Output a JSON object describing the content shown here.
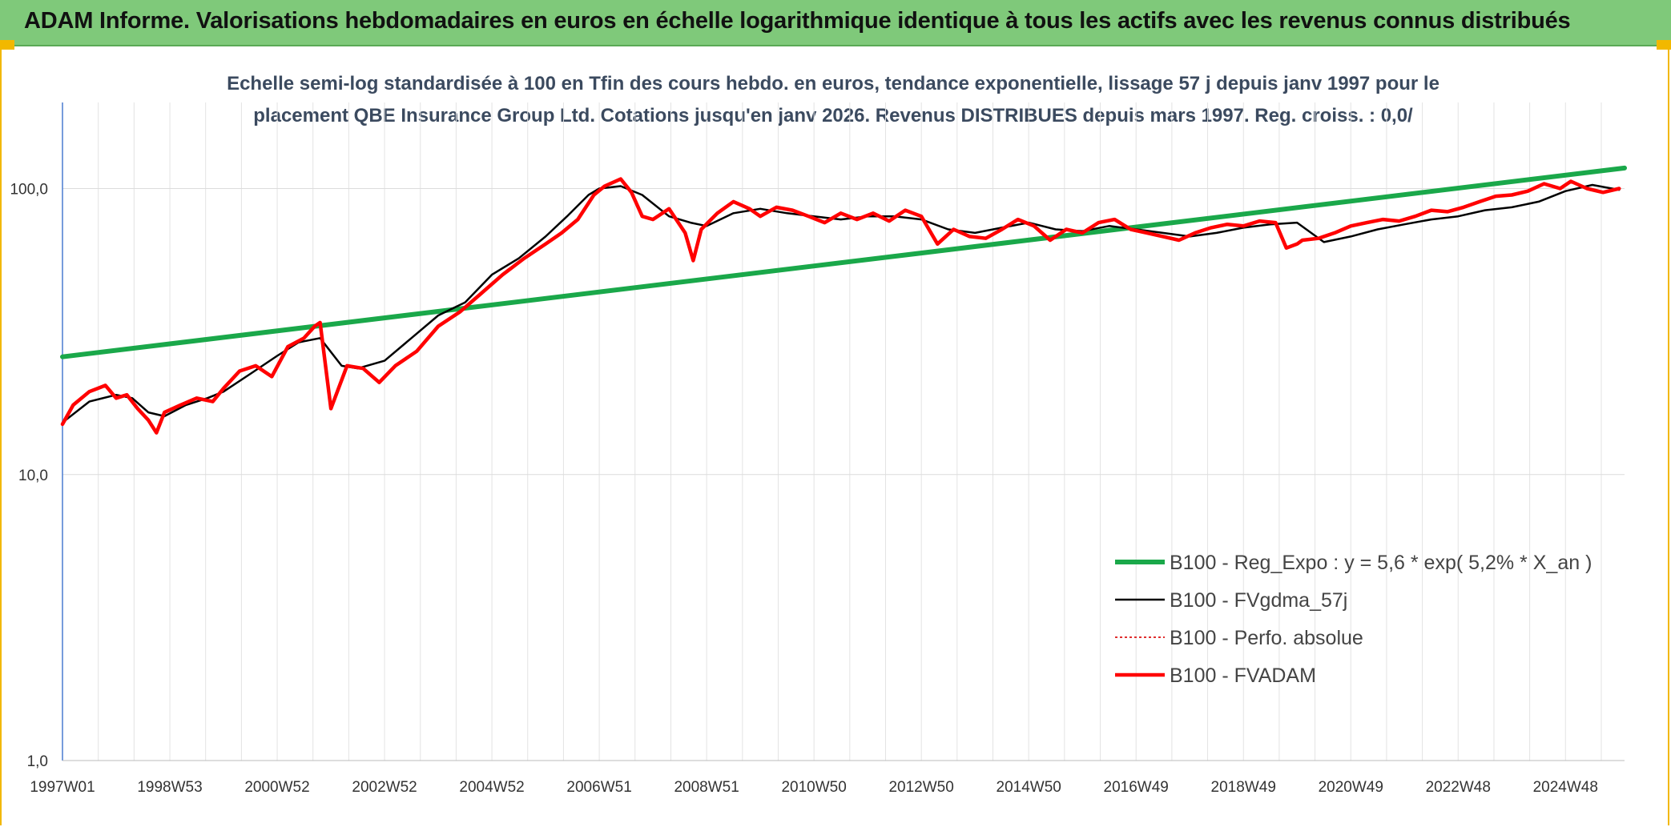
{
  "banner": {
    "title": "ADAM Informe. Valorisations hebdomadaires en euros en échelle logarithmique identique à tous les actifs avec les revenus connus distribués"
  },
  "colors": {
    "banner": "#7fc97a",
    "regression": "#1aa84a",
    "fvgdma": "#000000",
    "perfo": "#e03030",
    "fvadam": "#ff0000",
    "frame_accent": "#f2b800"
  },
  "chart_data": {
    "type": "line",
    "title_lines": [
      "Echelle semi-log standardisée à 100 en Tfin des cours hebdo. en euros, tendance exponentielle, lissage 57 j depuis janv 1997 pour le",
      "placement QBE Insurance Group Ltd. Cotations jusqu'en janv 2026. Revenus DISTRIBUES depuis mars 1997. Reg. croiss. : 0,0/"
    ],
    "y_scale": "log",
    "ylim": [
      1,
      200
    ],
    "y_ticks": [
      {
        "value": 1,
        "label": "1,0"
      },
      {
        "value": 10,
        "label": "10,0"
      },
      {
        "value": 100,
        "label": "100,0"
      }
    ],
    "x_range": [
      1997.0,
      2026.1
    ],
    "x_ticks": [
      {
        "x": 1997.0,
        "label": "1997W01"
      },
      {
        "x": 1999.0,
        "label": "1998W53"
      },
      {
        "x": 2001.0,
        "label": "2000W52"
      },
      {
        "x": 2003.0,
        "label": "2002W52"
      },
      {
        "x": 2005.0,
        "label": "2004W52"
      },
      {
        "x": 2007.0,
        "label": "2006W51"
      },
      {
        "x": 2009.0,
        "label": "2008W51"
      },
      {
        "x": 2011.0,
        "label": "2010W50"
      },
      {
        "x": 2013.0,
        "label": "2012W50"
      },
      {
        "x": 2015.0,
        "label": "2014W50"
      },
      {
        "x": 2017.0,
        "label": "2016W49"
      },
      {
        "x": 2019.0,
        "label": "2018W49"
      },
      {
        "x": 2021.0,
        "label": "2020W49"
      },
      {
        "x": 2023.0,
        "label": "2022W48"
      },
      {
        "x": 2025.0,
        "label": "2024W48"
      }
    ],
    "grid": "vertical-and-horizontal",
    "legend_position": "bottom-right",
    "series": [
      {
        "name": "B100 - Reg_Expo : y = 5,6 * exp( 5,2% *  X_an )",
        "style": "solid-thick",
        "x": [
          1997.0,
          2026.1
        ],
        "y": [
          25.8,
          118
        ]
      },
      {
        "name": "B100 - FVgdma_57j",
        "style": "solid-thin",
        "x": [
          1997.0,
          1997.5,
          1998.0,
          1998.3,
          1998.6,
          1998.9,
          1999.3,
          1999.7,
          2000.0,
          2000.5,
          2001.0,
          2001.4,
          2001.8,
          2002.2,
          2002.5,
          2003.0,
          2003.5,
          2004.0,
          2004.5,
          2005.0,
          2005.5,
          2006.0,
          2006.4,
          2006.8,
          2007.0,
          2007.4,
          2007.8,
          2008.3,
          2008.7,
          2009.0,
          2009.5,
          2010.0,
          2010.5,
          2011.0,
          2011.5,
          2012.0,
          2012.5,
          2013.0,
          2013.5,
          2014.0,
          2014.5,
          2015.0,
          2015.5,
          2016.0,
          2016.5,
          2017.0,
          2017.5,
          2018.0,
          2018.5,
          2019.0,
          2019.5,
          2020.0,
          2020.5,
          2021.0,
          2021.5,
          2022.0,
          2022.5,
          2023.0,
          2023.5,
          2024.0,
          2024.5,
          2025.0,
          2025.5,
          2026.0
        ],
        "y": [
          15.2,
          18,
          19,
          18.5,
          16.5,
          16,
          17.5,
          18.5,
          19.5,
          22.5,
          26,
          29,
          30,
          24,
          23.5,
          25,
          30,
          36,
          40,
          50,
          57,
          68,
          80,
          95,
          100,
          102,
          95,
          80,
          76,
          74,
          82,
          85,
          82,
          80,
          78,
          80,
          80,
          78,
          72,
          70,
          73,
          76,
          72,
          71,
          74,
          72,
          70,
          68,
          70,
          73,
          75,
          76,
          65,
          68,
          72,
          75,
          78,
          80,
          84,
          86,
          90,
          98,
          103,
          99
        ]
      },
      {
        "name": "B100 - Perfo. absolue",
        "style": "dotted",
        "x": [],
        "y": []
      },
      {
        "name": "B100 - FVADAM",
        "style": "solid-thick",
        "x": [
          1997.0,
          1997.2,
          1997.5,
          1997.8,
          1998.0,
          1998.2,
          1998.4,
          1998.6,
          1998.75,
          1998.9,
          1999.2,
          1999.5,
          1999.8,
          2000.0,
          2000.3,
          2000.6,
          2000.9,
          2001.2,
          2001.5,
          2001.7,
          2001.8,
          2002.0,
          2002.3,
          2002.6,
          2002.9,
          2003.2,
          2003.6,
          2004.0,
          2004.4,
          2004.8,
          2005.2,
          2005.6,
          2006.0,
          2006.3,
          2006.6,
          2006.9,
          2007.1,
          2007.4,
          2007.6,
          2007.8,
          2008.0,
          2008.3,
          2008.6,
          2008.75,
          2008.9,
          2009.2,
          2009.5,
          2009.8,
          2010.0,
          2010.3,
          2010.6,
          2010.9,
          2011.2,
          2011.5,
          2011.8,
          2012.1,
          2012.4,
          2012.7,
          2013.0,
          2013.3,
          2013.6,
          2013.9,
          2014.2,
          2014.5,
          2014.8,
          2015.1,
          2015.4,
          2015.7,
          2016.0,
          2016.3,
          2016.6,
          2016.9,
          2017.2,
          2017.5,
          2017.8,
          2018.1,
          2018.4,
          2018.7,
          2019.0,
          2019.3,
          2019.6,
          2019.8,
          2020.0,
          2020.1,
          2020.4,
          2020.7,
          2021.0,
          2021.3,
          2021.6,
          2021.9,
          2022.2,
          2022.5,
          2022.8,
          2023.1,
          2023.4,
          2023.7,
          2024.0,
          2024.3,
          2024.6,
          2024.9,
          2025.1,
          2025.4,
          2025.7,
          2026.0
        ],
        "y": [
          15,
          17.5,
          19.5,
          20.5,
          18.5,
          19,
          17,
          15.5,
          14,
          16.5,
          17.5,
          18.5,
          18,
          20,
          23,
          24,
          22,
          28,
          30,
          33,
          34,
          17,
          24,
          23.5,
          21,
          24,
          27,
          33,
          37,
          43,
          50,
          57,
          64,
          70,
          78,
          95,
          102,
          108,
          97,
          80,
          78,
          85,
          70,
          56,
          72,
          82,
          90,
          85,
          80,
          86,
          84,
          80,
          76,
          82,
          78,
          82,
          77,
          84,
          80,
          64,
          72,
          68,
          67,
          72,
          78,
          74,
          66,
          72,
          70,
          76,
          78,
          72,
          70,
          68,
          66,
          70,
          73,
          75,
          74,
          77,
          76,
          62,
          64,
          66,
          67,
          70,
          74,
          76,
          78,
          77,
          80,
          84,
          83,
          86,
          90,
          94,
          95,
          98,
          104,
          100,
          106,
          100,
          97,
          100
        ]
      }
    ]
  }
}
